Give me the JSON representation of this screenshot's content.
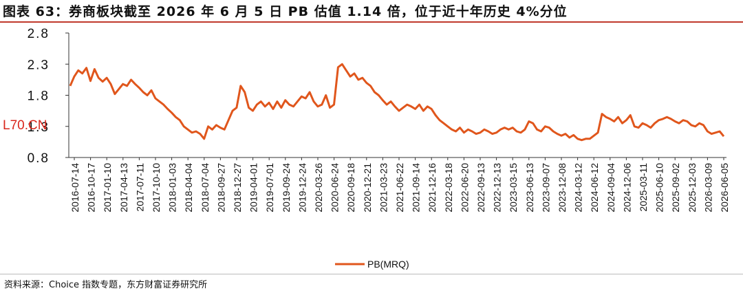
{
  "header": {
    "title": "图表 63：券商板块截至 2026 年 6 月 5 日 PB 估值 1.14 倍，位于近十年历史 4%分位"
  },
  "watermark_text": "L70.CN",
  "footer": {
    "source": "资料来源：Choice 指数专题，东方财富证券研究所"
  },
  "colors": {
    "series": "#e0561c",
    "title_rule": "#c0392b"
  },
  "chart_data": {
    "type": "line",
    "title": "",
    "xlabel": "",
    "ylabel": "",
    "ylim": [
      0.8,
      2.8
    ],
    "yticks": [
      0.8,
      1.3,
      1.8,
      2.3,
      2.8
    ],
    "x_tick_labels": [
      "2016-07-14",
      "2016-10-17",
      "2017-01-10",
      "2017-04-13",
      "2017-07-11",
      "2017-10-10",
      "2018-01-03",
      "2018-04-04",
      "2018-07-04",
      "2018-09-27",
      "2018-12-27",
      "2019-04-01",
      "2019-07-01",
      "2019-09-24",
      "2019-12-24",
      "2020-03-26",
      "2020-06-24",
      "2020-09-18",
      "2020-12-21",
      "2021-03-23",
      "2021-06-22",
      "2021-09-14",
      "2021-12-16",
      "2022-03-18",
      "2022-06-20",
      "2022-09-13",
      "2022-12-13",
      "2023-03-15",
      "2023-06-13",
      "2023-09-07",
      "2023-12-08",
      "2024-03-12",
      "2024-06-12",
      "2024-09-04",
      "2024-12-06",
      "2025-03-11",
      "2025-06-10",
      "2025-09-02",
      "2025-12-03",
      "2026-03-09",
      "2026-06-05"
    ],
    "legend": "bottom-center",
    "series": [
      {
        "name": "PB(MRQ)",
        "values": [
          1.95,
          2.1,
          2.2,
          2.15,
          2.24,
          2.03,
          2.22,
          2.08,
          2.02,
          2.08,
          1.98,
          1.82,
          1.9,
          1.98,
          1.95,
          2.05,
          1.98,
          1.92,
          1.85,
          1.8,
          1.88,
          1.75,
          1.7,
          1.65,
          1.58,
          1.52,
          1.45,
          1.4,
          1.3,
          1.25,
          1.2,
          1.22,
          1.18,
          1.1,
          1.3,
          1.25,
          1.32,
          1.28,
          1.25,
          1.4,
          1.55,
          1.6,
          1.95,
          1.85,
          1.6,
          1.55,
          1.65,
          1.7,
          1.62,
          1.68,
          1.58,
          1.7,
          1.6,
          1.72,
          1.65,
          1.62,
          1.7,
          1.78,
          1.75,
          1.85,
          1.7,
          1.62,
          1.65,
          1.8,
          1.6,
          1.65,
          2.25,
          2.3,
          2.2,
          2.1,
          2.15,
          2.05,
          2.08,
          2.0,
          1.95,
          1.85,
          1.8,
          1.72,
          1.65,
          1.7,
          1.62,
          1.55,
          1.6,
          1.65,
          1.62,
          1.58,
          1.65,
          1.55,
          1.62,
          1.58,
          1.48,
          1.4,
          1.35,
          1.3,
          1.25,
          1.22,
          1.28,
          1.2,
          1.25,
          1.22,
          1.18,
          1.2,
          1.25,
          1.22,
          1.18,
          1.2,
          1.25,
          1.28,
          1.25,
          1.28,
          1.22,
          1.2,
          1.25,
          1.38,
          1.35,
          1.25,
          1.22,
          1.3,
          1.28,
          1.22,
          1.18,
          1.15,
          1.18,
          1.12,
          1.16,
          1.1,
          1.08,
          1.1,
          1.1,
          1.15,
          1.2,
          1.5,
          1.45,
          1.42,
          1.38,
          1.45,
          1.35,
          1.4,
          1.48,
          1.3,
          1.28,
          1.35,
          1.32,
          1.28,
          1.35,
          1.4,
          1.42,
          1.45,
          1.42,
          1.38,
          1.35,
          1.4,
          1.38,
          1.32,
          1.3,
          1.35,
          1.32,
          1.22,
          1.18,
          1.2,
          1.22,
          1.14
        ]
      }
    ]
  }
}
